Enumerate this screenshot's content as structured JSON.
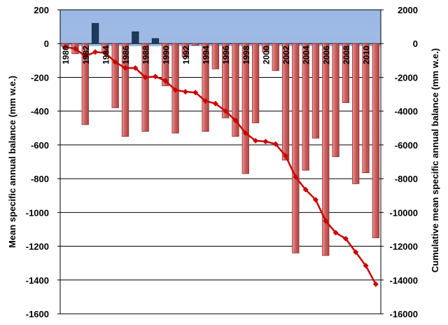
{
  "chart_data": {
    "type": "bar",
    "ylabel": "Mean specific annual balance (mm w.e.)",
    "y2label": "Cumulative mean specific annual balance (mm w.e.)",
    "ylim": [
      -1600,
      200
    ],
    "y2lim": [
      -16000,
      2000
    ],
    "yticks": [
      "200",
      "0",
      "-200",
      "-400",
      "-600",
      "-800",
      "-1000",
      "-1200",
      "-1400",
      "-1600"
    ],
    "y2ticks": [
      "2000",
      "0",
      "-2000",
      "-4000",
      "-6000",
      "-8000",
      "-10000",
      "-12000",
      "-14000",
      "-16000"
    ],
    "x": [
      1980,
      1981,
      1982,
      1983,
      1984,
      1985,
      1986,
      1987,
      1988,
      1989,
      1990,
      1991,
      1992,
      1993,
      1994,
      1995,
      1996,
      1997,
      1998,
      1999,
      2000,
      2001,
      2002,
      2003,
      2004,
      2005,
      2006,
      2007,
      2008,
      2009,
      2010,
      2011
    ],
    "x_tick_labels": [
      "1980",
      "1982",
      "1984",
      "1986",
      "1988",
      "1990",
      "1992",
      "1994",
      "1996",
      "1998",
      "2000",
      "2002",
      "2004",
      "2006",
      "2008",
      "2010"
    ],
    "series": [
      {
        "axis": "left",
        "kind": "bar",
        "values": [
          -20,
          -60,
          -480,
          120,
          -50,
          -380,
          -550,
          70,
          -520,
          30,
          -250,
          -530,
          -80,
          -10,
          -520,
          -150,
          -440,
          -550,
          -770,
          -470,
          -50,
          -160,
          -690,
          -1240,
          -750,
          -560,
          -1255,
          -670,
          -350,
          -830,
          -765,
          -1150
        ]
      },
      {
        "axis": "right",
        "kind": "line",
        "values": [
          -200,
          -300,
          -750,
          -500,
          -550,
          -1100,
          -1450,
          -1450,
          -2000,
          -1950,
          -2200,
          -2750,
          -2850,
          -2900,
          -3400,
          -3550,
          -4000,
          -4550,
          -5300,
          -5750,
          -5800,
          -5950,
          -6650,
          -7900,
          -8650,
          -9250,
          -10500,
          -11200,
          -11550,
          -12350,
          -13150,
          -14250
        ]
      }
    ],
    "colors": {
      "plot_bg": "#9db9e4",
      "positive_bar": "#1f3b5c",
      "negative_bar": "#cd5c5c",
      "line": "#cc0000",
      "grid": "#000000"
    },
    "grid": true
  }
}
